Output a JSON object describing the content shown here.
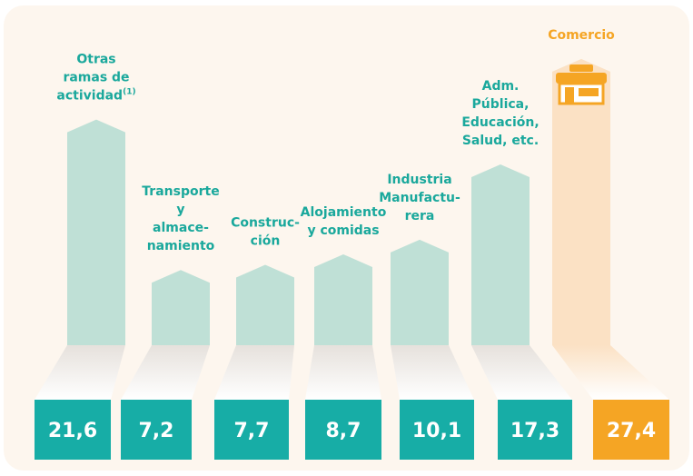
{
  "chart_data": {
    "type": "bar",
    "categories": [
      [
        "Otras",
        "ramas de",
        "actividad"
      ],
      [
        "Transporte",
        "y",
        "almace-",
        "namiento"
      ],
      [
        "Construc-",
        "ción"
      ],
      [
        "Alojamiento",
        "y comidas"
      ],
      [
        "Industria",
        "Manufactu-",
        "rera"
      ],
      [
        "Adm.",
        "Pública,",
        "Educación,",
        "Salud, etc."
      ],
      [
        "Comercio"
      ]
    ],
    "category_note": "(1)",
    "values": [
      21.6,
      7.2,
      7.7,
      8.7,
      10.1,
      17.3,
      27.4
    ],
    "value_labels": [
      "21,6",
      "7,2",
      "7,7",
      "8,7",
      "10,1",
      "17,3",
      "27,4"
    ],
    "ylim": [
      0,
      30
    ],
    "color": "#bfe0d6",
    "box_color": "#17ada6",
    "label_color": "#1aa89c",
    "highlight_index": 6,
    "highlight_color": "#fbe1c4",
    "highlight_box_color": "#f5a524",
    "highlight_label_color": "#f5a524"
  }
}
